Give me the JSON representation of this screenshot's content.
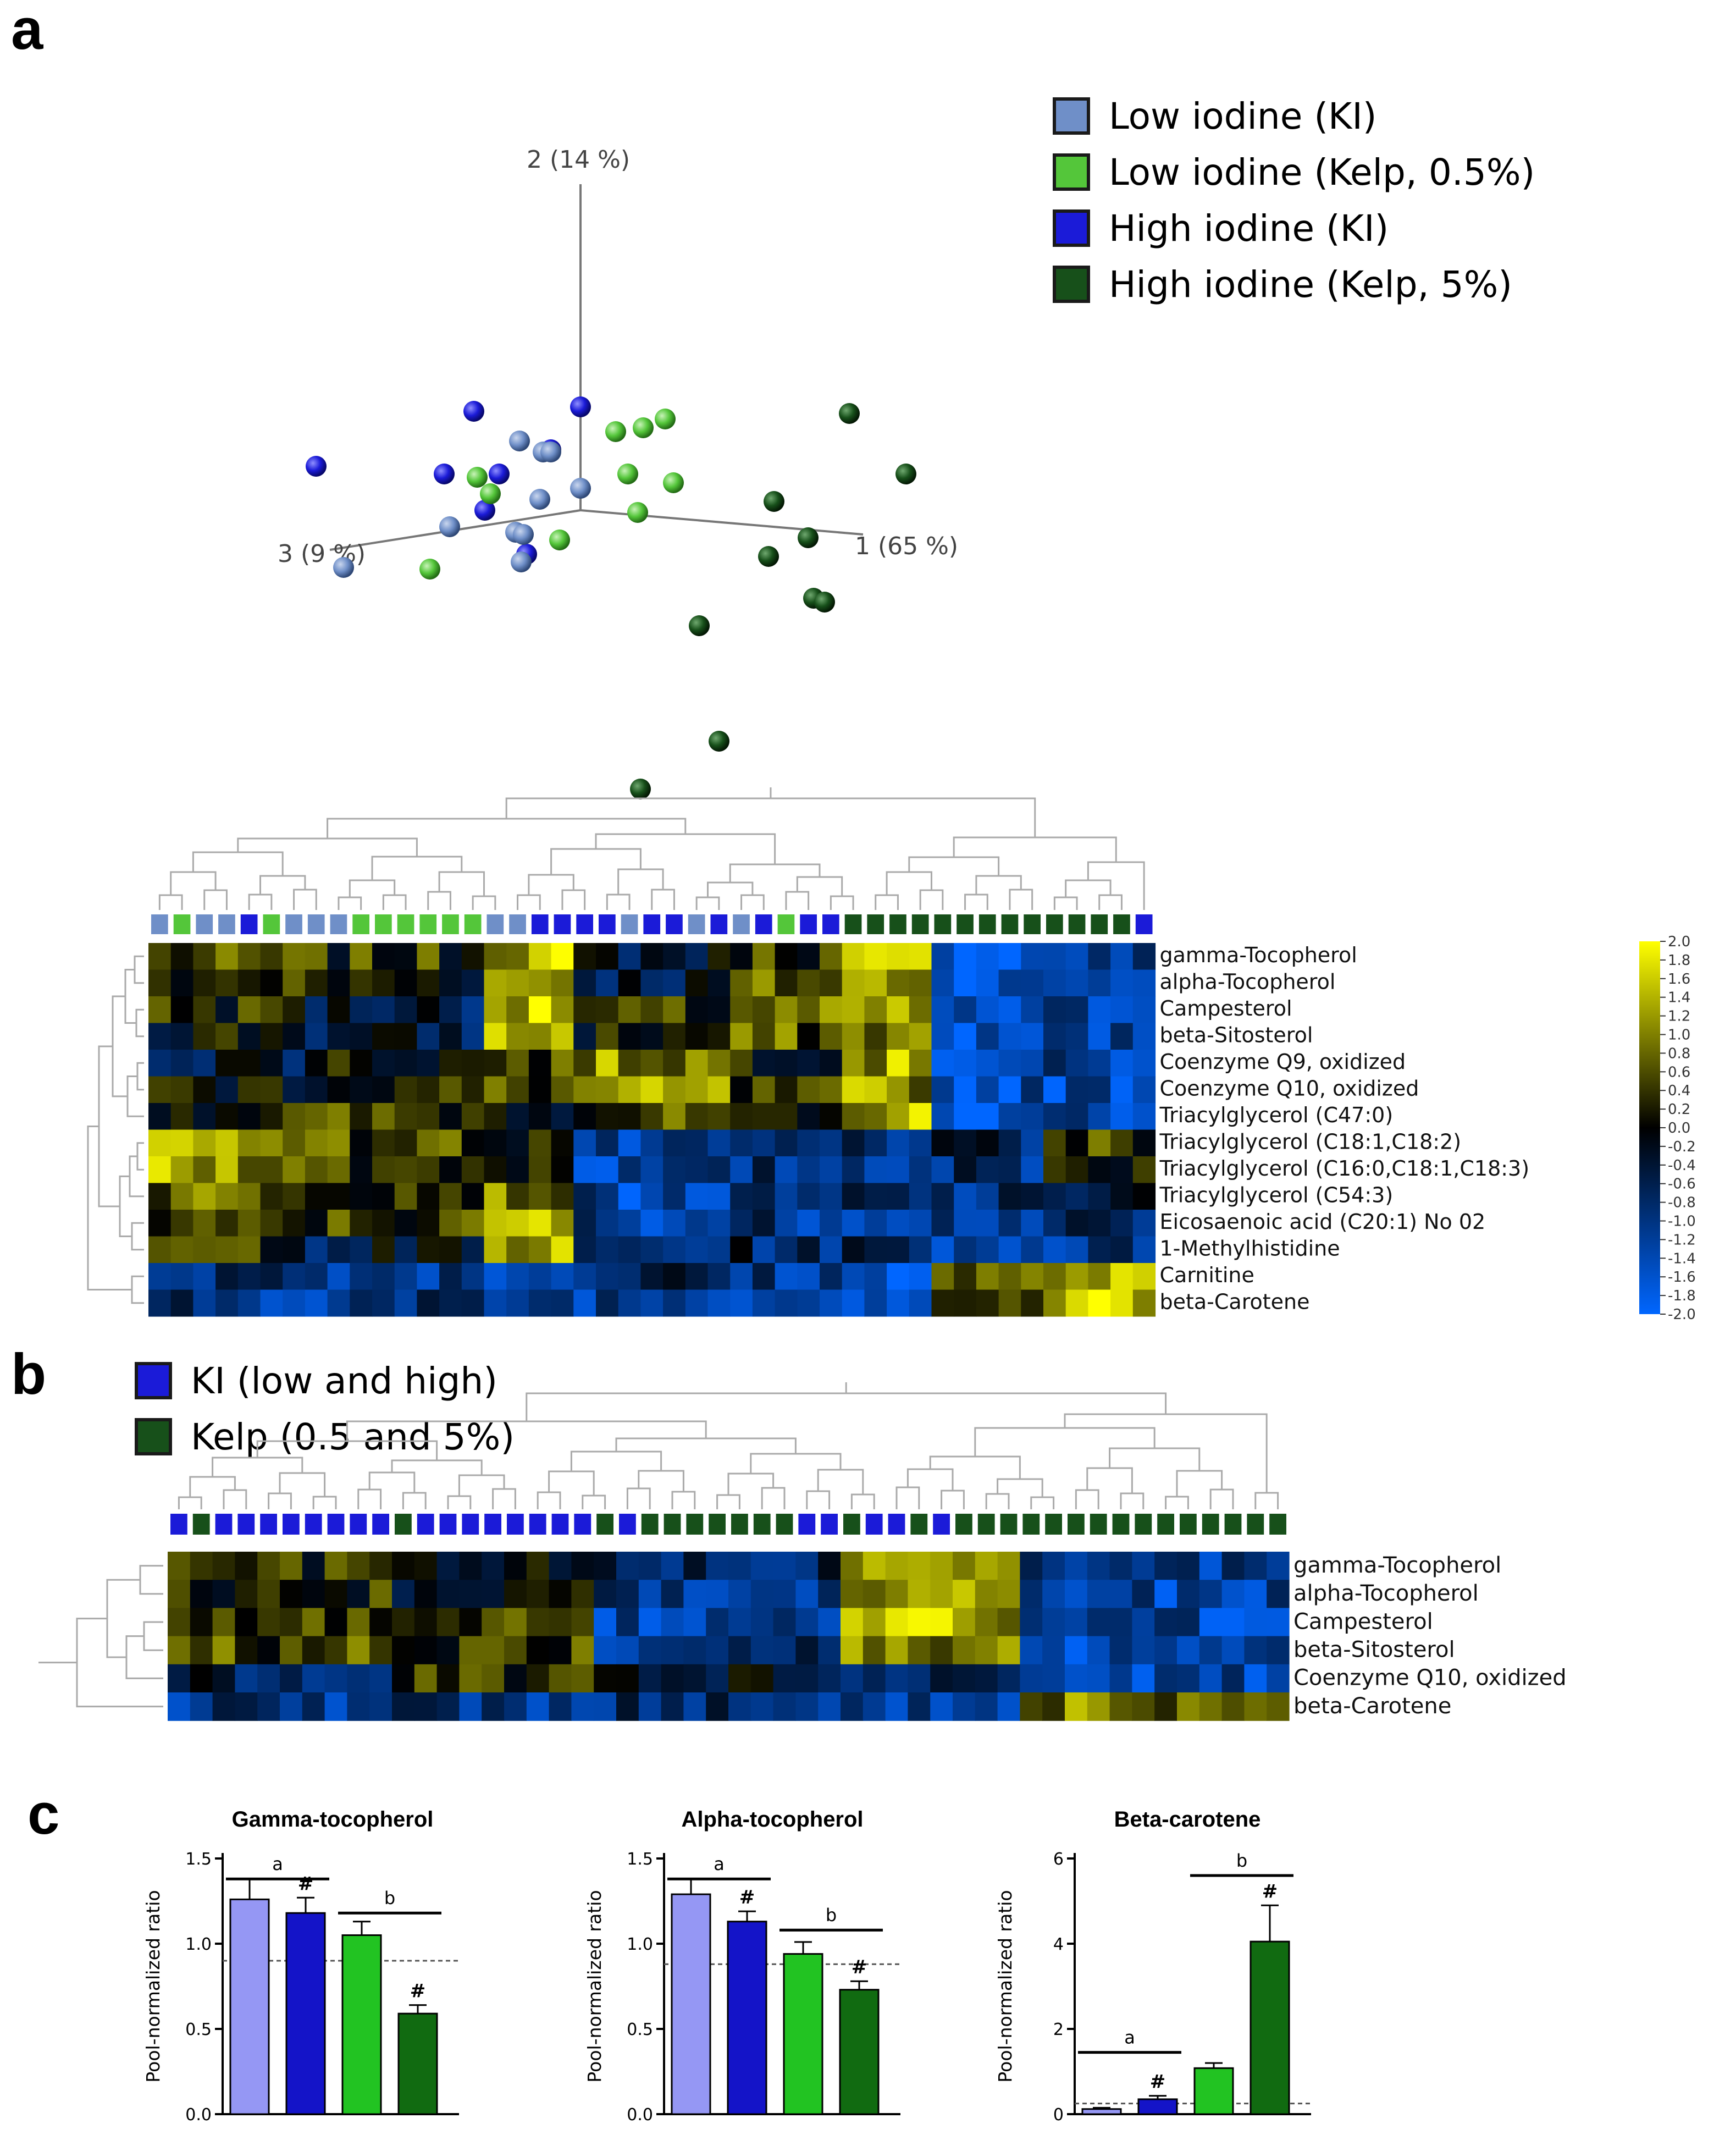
{
  "panels": {
    "a": "a",
    "b": "b",
    "c": "c"
  },
  "colors": {
    "low_ki": "#6f8fc8",
    "low_kelp": "#54c63a",
    "high_ki": "#1b1bd8",
    "high_kelp": "#17501a",
    "bar_light_ki": "#9597f4",
    "bar_high_ki": "#1414c8",
    "bar_light_kelp": "#22c322",
    "bar_high_kelp": "#116b11"
  },
  "legend_a": [
    {
      "label": "Low iodine (KI)",
      "color": "#6f8fc8"
    },
    {
      "label": "Low iodine (Kelp, 0.5%)",
      "color": "#54c63a"
    },
    {
      "label": "High iodine (KI)",
      "color": "#1b1bd8"
    },
    {
      "label": "High iodine (Kelp, 5%)",
      "color": "#17501a"
    }
  ],
  "legend_b": [
    {
      "label": "KI (low and high)",
      "color": "#1b1bd8"
    },
    {
      "label": "Kelp (0.5 and 5%)",
      "color": "#17501a"
    }
  ],
  "chart_data": [
    {
      "type": "scatter",
      "axes": {
        "pc1": "1 (65 %)",
        "pc2": "2 (14 %)",
        "pc3": "3 (9 %)"
      },
      "groups": [
        "low_ki",
        "low_kelp",
        "high_ki",
        "high_kelp"
      ]
    },
    {
      "type": "heatmap",
      "rows": [
        "gamma-Tocopherol",
        "alpha-Tocopherol",
        "Campesterol",
        "beta-Sitosterol",
        "Coenzyme Q9, oxidized",
        "Coenzyme Q10, oxidized",
        "Triacylglycerol (C47:0)",
        "Triacylglycerol (C18:1,C18:2)",
        "Triacylglycerol (C16:0,C18:1,C18:3)",
        "Triacylglycerol (C54:3)",
        "Eicosaenoic acid (C20:1) No 02",
        "1-Methylhistidine",
        "Carnitine",
        "beta-Carotene"
      ],
      "column_groups": [
        "low_ki",
        "low_kelp",
        "low_ki",
        "low_ki",
        "high_ki",
        "low_kelp",
        "low_ki",
        "low_ki",
        "low_ki",
        "low_kelp",
        "low_kelp",
        "low_kelp",
        "low_kelp",
        "low_kelp",
        "low_kelp",
        "low_ki",
        "low_ki",
        "high_ki",
        "high_ki",
        "high_ki",
        "high_ki",
        "low_ki",
        "high_ki",
        "high_ki",
        "low_ki",
        "high_ki",
        "low_ki",
        "high_ki",
        "low_kelp",
        "high_ki",
        "high_ki",
        "high_kelp",
        "high_kelp",
        "high_kelp",
        "high_kelp",
        "high_kelp",
        "high_kelp",
        "high_kelp",
        "high_kelp",
        "high_kelp",
        "high_kelp",
        "high_kelp",
        "high_kelp",
        "high_kelp",
        "high_ki"
      ],
      "scale": {
        "min": -2.0,
        "max": 2.0,
        "ticks": [
          "2.0",
          "1.8",
          "1.6",
          "1.4",
          "1.2",
          "1.0",
          "0.8",
          "0.6",
          "0.4",
          "0.2",
          "0.0",
          "-0.2",
          "-0.4",
          "-0.6",
          "-0.8",
          "-1.0",
          "-1.2",
          "-1.4",
          "-1.6",
          "-1.8",
          "-2.0"
        ]
      },
      "block_means": [
        [
          0.4,
          0.3,
          1.4,
          -0.3,
          0.5,
          1.3,
          -1.6,
          -1.2
        ],
        [
          0.3,
          0.1,
          1.2,
          -0.4,
          0.6,
          1.2,
          -1.5,
          -1.2
        ],
        [
          0.3,
          -0.4,
          1.4,
          0.2,
          0.7,
          1.0,
          -1.6,
          -1.3
        ],
        [
          0.1,
          -0.5,
          1.3,
          0.1,
          0.6,
          0.9,
          -1.6,
          -1.3
        ],
        [
          -0.3,
          0.1,
          0.5,
          1.0,
          0.3,
          1.2,
          -1.4,
          -1.3
        ],
        [
          0.1,
          0.2,
          0.5,
          1.0,
          0.2,
          1.1,
          -1.4,
          -1.3
        ],
        [
          0.3,
          0.4,
          0.2,
          0.4,
          -0.3,
          1.3,
          -1.6,
          -1.2
        ],
        [
          1.4,
          0.5,
          0.3,
          -1.4,
          -1.1,
          -0.8,
          -0.8,
          0.3
        ],
        [
          1.2,
          0.4,
          0.3,
          -1.3,
          -1.0,
          -0.9,
          -0.9,
          0.3
        ],
        [
          0.8,
          0.6,
          0.9,
          -1.3,
          -1.2,
          -0.8,
          -1.0,
          -0.3
        ],
        [
          0.2,
          0.4,
          1.4,
          -1.1,
          -1.0,
          -0.9,
          -1.0,
          -1.0
        ],
        [
          0.5,
          -0.4,
          1.2,
          -0.9,
          -0.7,
          -0.8,
          -1.1,
          -1.1
        ],
        [
          -0.7,
          -0.9,
          -1.2,
          -0.7,
          -1.1,
          -1.5,
          0.6,
          1.2
        ],
        [
          -1.0,
          -1.0,
          -1.0,
          -1.0,
          -1.0,
          -1.2,
          0.4,
          1.4
        ]
      ]
    },
    {
      "type": "heatmap",
      "rows": [
        "gamma-Tocopherol",
        "alpha-Tocopherol",
        "Campesterol",
        "beta-Sitosterol",
        "Coenzyme Q10, oxidized",
        "beta-Carotene"
      ],
      "column_groups": [
        "KI",
        "Kelp",
        "KI",
        "KI",
        "KI",
        "KI",
        "KI",
        "KI",
        "KI",
        "KI",
        "Kelp",
        "KI",
        "KI",
        "KI",
        "KI",
        "KI",
        "KI",
        "KI",
        "KI",
        "Kelp",
        "KI",
        "Kelp",
        "Kelp",
        "Kelp",
        "Kelp",
        "Kelp",
        "Kelp",
        "Kelp",
        "KI",
        "KI",
        "Kelp",
        "KI",
        "KI",
        "Kelp",
        "KI",
        "Kelp",
        "Kelp",
        "Kelp",
        "Kelp",
        "Kelp",
        "Kelp",
        "Kelp",
        "Kelp",
        "Kelp",
        "Kelp",
        "Kelp",
        "Kelp",
        "Kelp",
        "Kelp",
        "Kelp"
      ]
    },
    {
      "type": "bar",
      "title": "Gamma-tocopherol",
      "ylabel": "Pool-normalized ratio",
      "ylim": [
        0,
        1.5
      ],
      "yticks": [
        "0.0",
        "0.5",
        "1.0",
        "1.5"
      ],
      "reference_line": 0.9,
      "values": [
        1.26,
        1.18,
        1.05,
        0.59
      ],
      "errors": [
        0.12,
        0.09,
        0.08,
        0.05
      ],
      "hash": [
        false,
        true,
        false,
        true
      ],
      "brackets": [
        {
          "label": "a",
          "span": [
            0,
            1
          ],
          "y": 1.38
        },
        {
          "label": "b",
          "span": [
            2,
            3
          ],
          "y": 1.18
        }
      ]
    },
    {
      "type": "bar",
      "title": "Alpha-tocopherol",
      "ylabel": "Pool-normalized ratio",
      "ylim": [
        0,
        1.5
      ],
      "yticks": [
        "0.0",
        "0.5",
        "1.0",
        "1.5"
      ],
      "reference_line": 0.88,
      "values": [
        1.29,
        1.13,
        0.94,
        0.73
      ],
      "errors": [
        0.09,
        0.06,
        0.07,
        0.05
      ],
      "hash": [
        false,
        true,
        false,
        true
      ],
      "brackets": [
        {
          "label": "a",
          "span": [
            0,
            1
          ],
          "y": 1.38
        },
        {
          "label": "b",
          "span": [
            2,
            3
          ],
          "y": 1.08
        }
      ]
    },
    {
      "type": "bar",
      "title": "Beta-carotene",
      "ylabel": "Pool-normalized ratio",
      "ylim": [
        0,
        6
      ],
      "yticks": [
        "0",
        "2",
        "4",
        "6"
      ],
      "reference_line": 0.25,
      "values": [
        0.12,
        0.35,
        1.08,
        4.05
      ],
      "errors": [
        0.03,
        0.08,
        0.12,
        0.85
      ],
      "hash": [
        false,
        true,
        false,
        true
      ],
      "brackets": [
        {
          "label": "a",
          "span": [
            0,
            1
          ],
          "y": 1.45
        },
        {
          "label": "b",
          "span": [
            2,
            3
          ],
          "y": 5.6
        }
      ]
    }
  ]
}
